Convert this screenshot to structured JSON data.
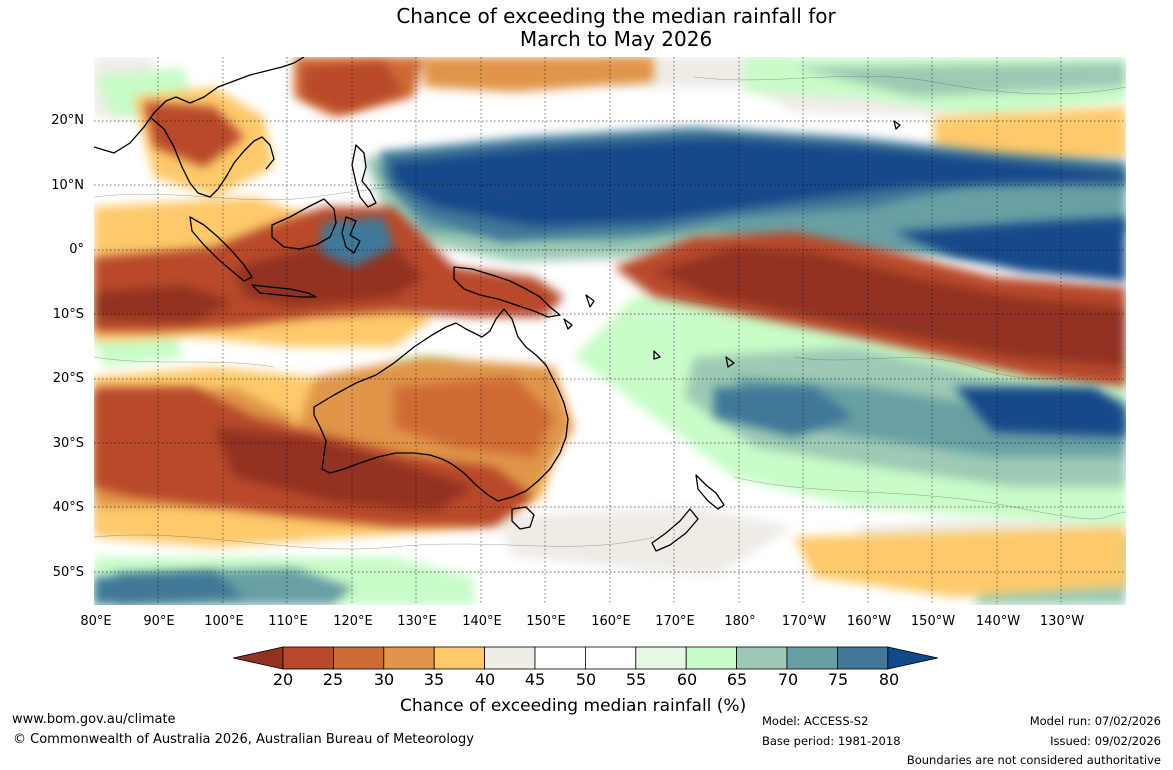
{
  "title": {
    "line1": "Chance of exceeding the median rainfall for",
    "line2": "March to May 2026"
  },
  "map": {
    "region": "Australia and Indo-Pacific",
    "lat_labels": [
      "20°N",
      "10°N",
      "0°",
      "10°S",
      "20°S",
      "30°S",
      "40°S",
      "50°S"
    ],
    "lon_labels": [
      "80°E",
      "90°E",
      "100°E",
      "110°E",
      "120°E",
      "130°E",
      "140°E",
      "150°E",
      "160°E",
      "170°E",
      "180°",
      "170°W",
      "160°W",
      "150°W",
      "140°W",
      "130°W"
    ]
  },
  "colorbar": {
    "label": "Chance of exceeding median rainfall (%)",
    "ticks": [
      "20",
      "25",
      "30",
      "35",
      "40",
      "45",
      "50",
      "55",
      "60",
      "65",
      "70",
      "75",
      "80"
    ],
    "colors": [
      "#923220",
      "#b8482a",
      "#cf6a36",
      "#e0954a",
      "#fdc96b",
      "#efece6",
      "#ffffff",
      "#ffffff",
      "#e8f6e6",
      "#c8fcc8",
      "#9ccab4",
      "#67a0a4",
      "#417898",
      "#12498a"
    ]
  },
  "footer": {
    "website": "www.bom.gov.au/climate",
    "copyright": "© Commonwealth of Australia 2026, Australian Bureau of Meteorology",
    "model": "Model: ACCESS-S2",
    "base_period": "Base period: 1981-2018",
    "model_run": "Model run: 07/02/2026",
    "issued": "Issued: 09/02/2026",
    "disclaimer": "Boundaries are not considered authoritative"
  }
}
